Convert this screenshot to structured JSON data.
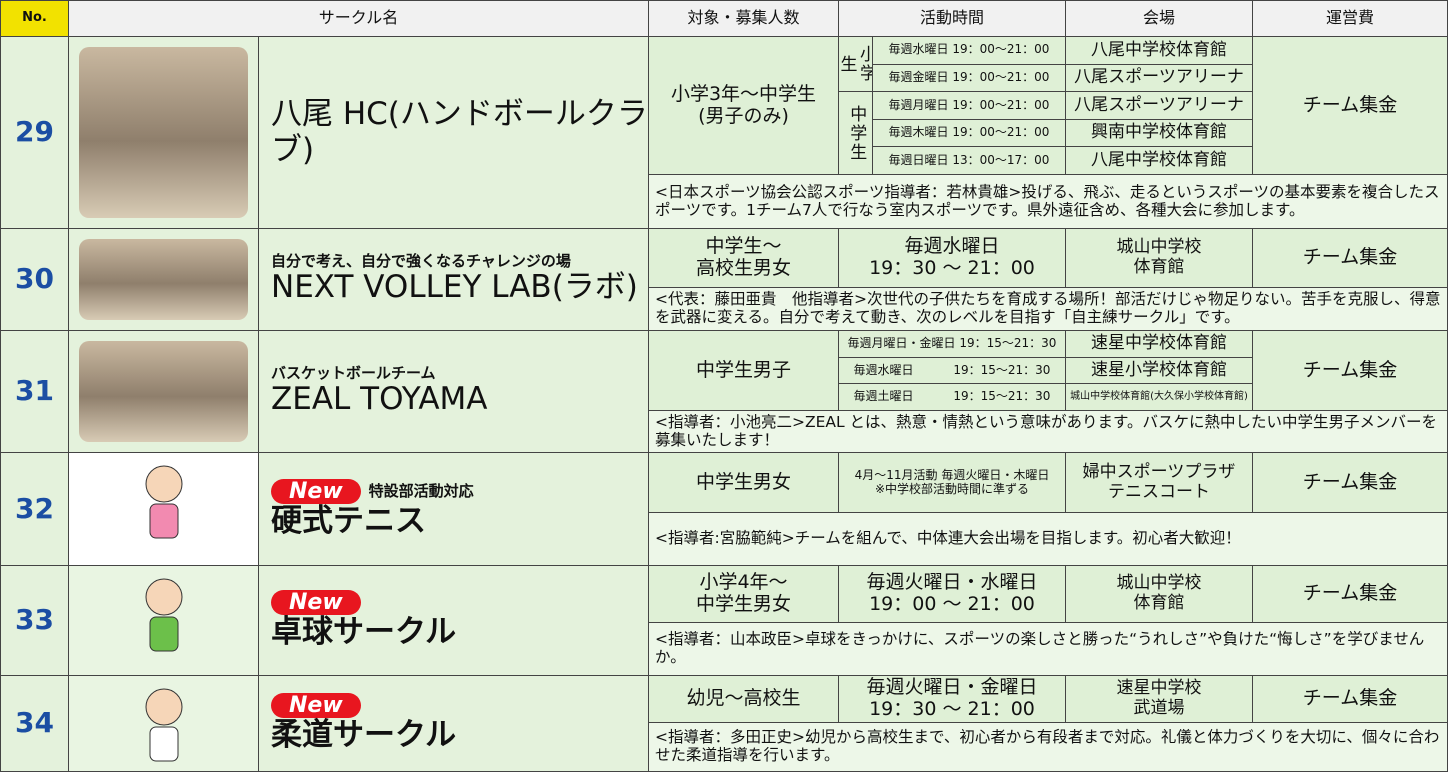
{
  "header": {
    "no": "No.",
    "name": "サークル名",
    "target": "対象・募集人数",
    "time": "活動時間",
    "venue": "会場",
    "cost": "運営費"
  },
  "rows": [
    {
      "no": "29",
      "name": "八尾 HC(ハンドボールクラブ)",
      "target": "小学3年～中学生\n(男子のみ)",
      "groups": [
        {
          "label": "小学生",
          "schedule": [
            {
              "time": "毎週水曜日 19：00～21：00",
              "venue": "八尾中学校体育館"
            },
            {
              "time": "毎週金曜日 19：00～21：00",
              "venue": "八尾スポーツアリーナ"
            }
          ]
        },
        {
          "label": "中学生",
          "schedule": [
            {
              "time": "毎週月曜日 19：00～21：00",
              "venue": "八尾スポーツアリーナ"
            },
            {
              "time": "毎週木曜日 19：00～21：00",
              "venue": "興南中学校体育館"
            },
            {
              "time": "毎週日曜日 13：00～17：00",
              "venue": "八尾中学校体育館"
            }
          ]
        }
      ],
      "cost": "チーム集金",
      "description": "<日本スポーツ協会公認スポーツ指導者：若林貴雄>投げる、飛ぶ、走るというスポーツの基本要素を複合したスポーツです。1チーム7人で行なう室内スポーツです。県外遠征含め、各種大会に参加します。"
    },
    {
      "no": "30",
      "tagline": "自分で考え、自分で強くなるチャレンジの場",
      "name": "NEXT VOLLEY LAB(ラボ)",
      "target": "中学生～\n高校生男女",
      "time": "毎週水曜日\n19：30 ～ 21：00",
      "venue": "城山中学校\n体育館",
      "cost": "チーム集金",
      "description": "<代表：藤田亜貴　他指導者>次世代の子供たちを育成する場所！部活だけじゃ物足りない。苦手を克服し、得意を武器に変える。自分で考えて動き、次のレベルを目指す「自主練サークル」です。"
    },
    {
      "no": "31",
      "tagline": "バスケットボールチーム",
      "name": "ZEAL TOYAMA",
      "target": "中学生男子",
      "schedule": [
        {
          "time": "毎週月曜日・金曜日 19：15～21：30",
          "venue": "速星中学校体育館"
        },
        {
          "time": "毎週水曜日　　　 19：15～21：30",
          "venue": "速星小学校体育館"
        },
        {
          "time": "毎週土曜日　　　 19：15～21：30",
          "venue": "城山中学校体育館(大久保小学校体育館)"
        }
      ],
      "cost": "チーム集金",
      "description": "<指導者：小池亮二>ZEAL とは、熱意・情熱という意味があります。バスケに熱中したい中学生男子メンバーを募集いたします！"
    },
    {
      "no": "32",
      "badge": "New",
      "tagline": "特設部活動対応",
      "name": "硬式テニス",
      "target": "中学生男女",
      "time": "4月～11月活動 毎週火曜日・木曜日\n※中学校部活動時間に準ずる",
      "venue": "婦中スポーツプラザ\nテニスコート",
      "cost": "チーム集金",
      "description": "<指導者:宮脇範純>チームを組んで、中体連大会出場を目指します。初心者大歓迎！"
    },
    {
      "no": "33",
      "badge": "New",
      "name": "卓球サークル",
      "target": "小学4年～\n中学生男女",
      "time": "毎週火曜日・水曜日\n19：00 ～ 21：00",
      "venue": "城山中学校\n体育館",
      "cost": "チーム集金",
      "description": "<指導者：山本政臣>卓球をきっかけに、スポーツの楽しさと勝った“うれしさ”や負けた“悔しさ”を学びませんか。"
    },
    {
      "no": "34",
      "badge": "New",
      "name": "柔道サークル",
      "target": "幼児～高校生",
      "time": "毎週火曜日・金曜日\n19：30 ～ 21：00",
      "venue": "速星中学校\n武道場",
      "cost": "チーム集金",
      "description": "<指導者：多田正史>幼児から高校生まで、初心者から有段者まで対応。礼儀と体力づくりを大切に、個々に合わせた柔道指導を行います。"
    }
  ]
}
